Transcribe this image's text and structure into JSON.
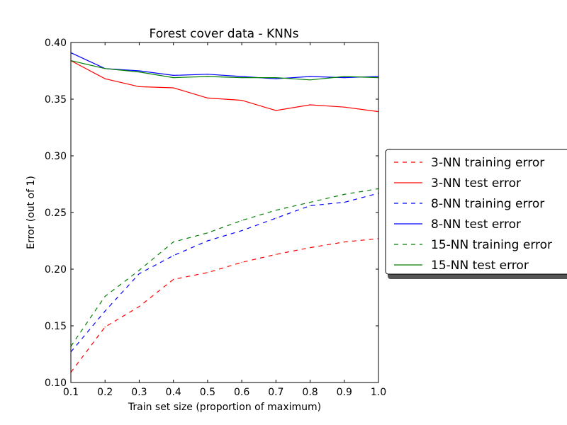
{
  "chart_data": {
    "type": "line",
    "title": "Forest cover data - KNNs",
    "xlabel": "Train set size (proportion of maximum)",
    "ylabel": "Error (out of 1)",
    "xlim": [
      0.1,
      1.0
    ],
    "ylim": [
      0.1,
      0.4
    ],
    "xticks": [
      "0.1",
      "0.2",
      "0.3",
      "0.4",
      "0.5",
      "0.6",
      "0.7",
      "0.8",
      "0.9",
      "1.0"
    ],
    "yticks": [
      "0.10",
      "0.15",
      "0.20",
      "0.25",
      "0.30",
      "0.35",
      "0.40"
    ],
    "grid": false,
    "legend_position": "right, outside plot area",
    "x": [
      0.1,
      0.2,
      0.3,
      0.4,
      0.5,
      0.6,
      0.7,
      0.8,
      0.9,
      1.0
    ],
    "series": [
      {
        "name": "3-NN training error",
        "color": "#ff0000",
        "style": "dashed",
        "values": [
          0.109,
          0.149,
          0.167,
          0.191,
          0.197,
          0.206,
          0.213,
          0.219,
          0.224,
          0.227
        ]
      },
      {
        "name": "3-NN test error",
        "color": "#ff0000",
        "style": "solid",
        "values": [
          0.384,
          0.368,
          0.361,
          0.36,
          0.351,
          0.349,
          0.34,
          0.345,
          0.343,
          0.339
        ]
      },
      {
        "name": "8-NN training error",
        "color": "#0000ff",
        "style": "dashed",
        "values": [
          0.127,
          0.163,
          0.196,
          0.212,
          0.225,
          0.234,
          0.245,
          0.256,
          0.259,
          0.267
        ]
      },
      {
        "name": "8-NN test error",
        "color": "#0000ff",
        "style": "solid",
        "values": [
          0.391,
          0.377,
          0.375,
          0.371,
          0.372,
          0.37,
          0.368,
          0.37,
          0.369,
          0.37
        ]
      },
      {
        "name": "15-NN training error",
        "color": "#008000",
        "style": "dashed",
        "values": [
          0.132,
          0.176,
          0.199,
          0.224,
          0.232,
          0.243,
          0.252,
          0.259,
          0.266,
          0.271
        ]
      },
      {
        "name": "15-NN test error",
        "color": "#008000",
        "style": "solid",
        "values": [
          0.384,
          0.377,
          0.374,
          0.369,
          0.37,
          0.369,
          0.369,
          0.367,
          0.37,
          0.369
        ]
      }
    ]
  }
}
